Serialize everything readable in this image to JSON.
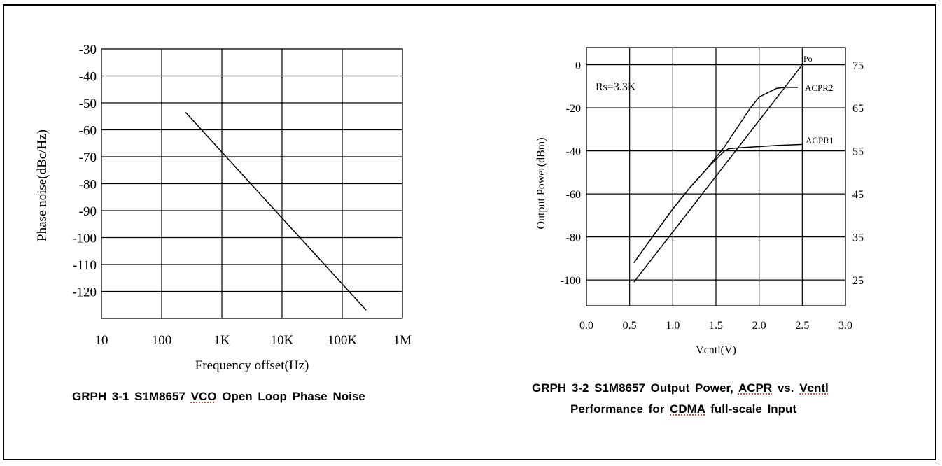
{
  "chart_data": [
    {
      "type": "line",
      "xlabel": "Frequency offset(Hz)",
      "ylabel": "Phase noise(dBc/Hz)",
      "x_scale": "log",
      "x_ticks": [
        "10",
        "100",
        "1K",
        "10K",
        "100K",
        "1M"
      ],
      "x_tick_values": [
        10,
        100,
        1000,
        10000,
        100000,
        1000000
      ],
      "y_ticks": [
        -30,
        -40,
        -50,
        -60,
        -70,
        -80,
        -90,
        -100,
        -110,
        -120
      ],
      "ylim": [
        -130,
        -30
      ],
      "xlim": [
        10,
        1000000
      ],
      "grid": true,
      "series": [
        {
          "x": [
            250,
            250000
          ],
          "y": [
            -53.5,
            -127
          ]
        }
      ],
      "caption": {
        "pre": "GRPH 3-1 S1M8657 ",
        "sq": "VCO",
        "post": " Open Loop Phase Noise"
      }
    },
    {
      "type": "line",
      "xlabel": "Vcntl(V)",
      "ylabel": "Output Power(dBm)",
      "x_ticks": [
        0.0,
        0.5,
        1.0,
        1.5,
        2.0,
        2.5,
        3.0
      ],
      "x_tick_labels": [
        "0.0",
        "0.5",
        "1.0",
        "1.5",
        "2.0",
        "2.5",
        "3.0"
      ],
      "y_ticks": [
        0,
        -20,
        -40,
        -60,
        -80,
        -100
      ],
      "y2_ticks": [
        75,
        65,
        55,
        45,
        35,
        25
      ],
      "xlim": [
        0.0,
        3.0
      ],
      "ylim": [
        -112,
        8
      ],
      "y2lim": [
        19,
        79
      ],
      "grid": true,
      "annotation": "Rs=3.3K",
      "series": [
        {
          "name": "Po",
          "x": [
            0.55,
            2.5
          ],
          "y": [
            -101,
            0
          ]
        },
        {
          "name": "ACPR2",
          "x": [
            0.55,
            0.8,
            1.0,
            1.2,
            1.4,
            1.5,
            1.6,
            1.7,
            1.8,
            1.9,
            2.0,
            2.1,
            2.2,
            2.3,
            2.45
          ],
          "y": [
            -92,
            -78,
            -67,
            -57,
            -48,
            -43,
            -38,
            -32,
            -26,
            -20,
            -15,
            -13,
            -11,
            -10.5,
            -10.5
          ]
        },
        {
          "name": "ACPR1",
          "x": [
            0.55,
            0.8,
            1.0,
            1.2,
            1.4,
            1.5,
            1.6,
            1.65,
            1.8,
            2.0,
            2.2,
            2.5
          ],
          "y": [
            -92,
            -78,
            -67,
            -57,
            -48,
            -44,
            -40,
            -39,
            -38.5,
            -38,
            -37.5,
            -37
          ]
        }
      ],
      "caption_line1": {
        "pre": "GRPH 3-2 S1M8657 Output Power, ",
        "sq": "ACPR",
        "post": " vs. ",
        "sq2": "Vcntl"
      },
      "caption_line2": {
        "pre": "Performance for ",
        "sq": "CDMA",
        "post": " full-scale Input"
      }
    }
  ]
}
